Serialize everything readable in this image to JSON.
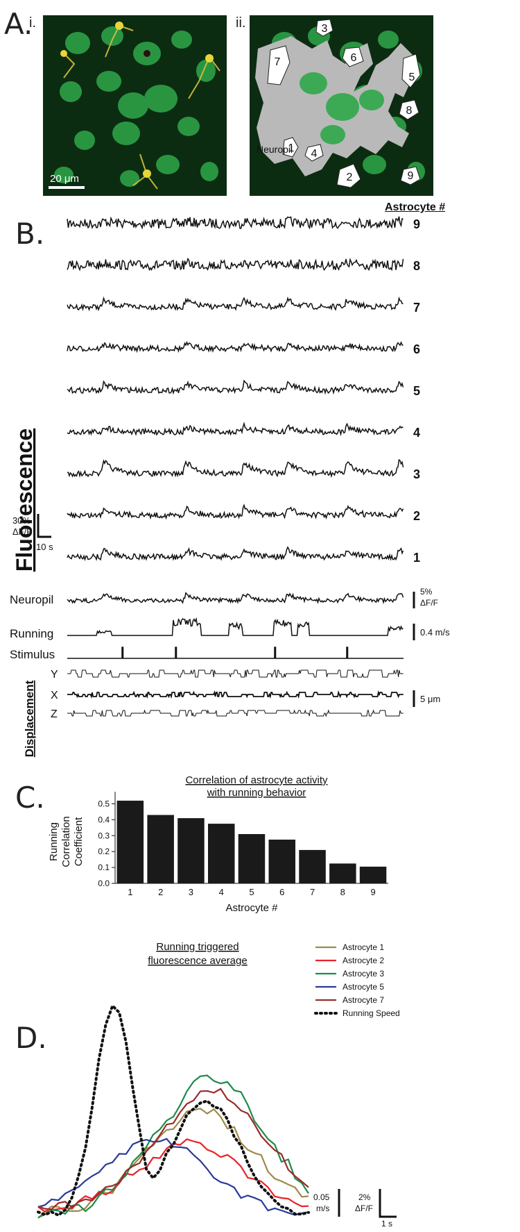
{
  "panel_a": {
    "letter": "A.",
    "sub_i": "i.",
    "sub_ii": "ii.",
    "scale_bar": "20 μm",
    "neuropil_label": "Neuropil",
    "roi_labels": [
      "1",
      "2",
      "3",
      "4",
      "5",
      "6",
      "7",
      "8",
      "9"
    ],
    "colors": {
      "background": "#0c2c12",
      "cell": "#2fa84a",
      "astrocyte": "#d6c13a",
      "overlay": "#b9b9b9"
    }
  },
  "panel_b": {
    "letter": "B.",
    "column_header": "Astrocyte #",
    "y_title": "Fluorescence",
    "scale_y": "30%",
    "scale_y_unit": "ΔF/F",
    "scale_x": "10 s",
    "traces": [
      "9",
      "8",
      "7",
      "6",
      "5",
      "4",
      "3",
      "2",
      "1"
    ],
    "neuropil": "Neuropil",
    "neuropil_scale": "5%",
    "neuropil_scale_unit": "ΔF/F",
    "running": "Running",
    "running_scale": "0.4 m/s",
    "stimulus": "Stimulus",
    "displacement_title": "Displacement",
    "disp_axes": [
      "Y",
      "X",
      "Z"
    ],
    "disp_scale": "5 μm"
  },
  "chart_data": [
    {
      "type": "bar",
      "panel": "C.",
      "title": "Correlation of astrocyte activity",
      "title_line2": "with running behavior",
      "xlabel": "Astrocyte #",
      "ylabel": [
        "Running",
        "Correlation",
        "Coefficient"
      ],
      "categories": [
        "1",
        "2",
        "3",
        "4",
        "5",
        "6",
        "7",
        "8",
        "9"
      ],
      "values": [
        0.52,
        0.43,
        0.41,
        0.375,
        0.31,
        0.275,
        0.21,
        0.125,
        0.105
      ],
      "ylim": [
        0,
        0.55
      ],
      "yticks": [
        "0.0",
        "0.1",
        "0.2",
        "0.3",
        "0.4",
        "0.5"
      ],
      "grid": false,
      "bar_color": "#1a1a1a"
    },
    {
      "type": "line",
      "panel": "D.",
      "title": "Running triggered",
      "title_line2": "fluorescence average",
      "series": [
        {
          "name": "Astrocyte 1",
          "color": "#a08a48"
        },
        {
          "name": "Astrocyte 2",
          "color": "#e8232a"
        },
        {
          "name": "Astrocyte 3",
          "color": "#1f8a4a"
        },
        {
          "name": "Astrocyte 5",
          "color": "#2a3a9a"
        },
        {
          "name": "Astrocyte 7",
          "color": "#9a2a2a"
        },
        {
          "name": "Running Speed",
          "color": "#111111",
          "dashed": true
        }
      ],
      "speed_scale": "0.05",
      "speed_scale_unit": "m/s",
      "fluor_scale": "2%",
      "fluor_scale_unit": "ΔF/F",
      "time_scale": "1 s",
      "legend_position": "top-right"
    }
  ]
}
